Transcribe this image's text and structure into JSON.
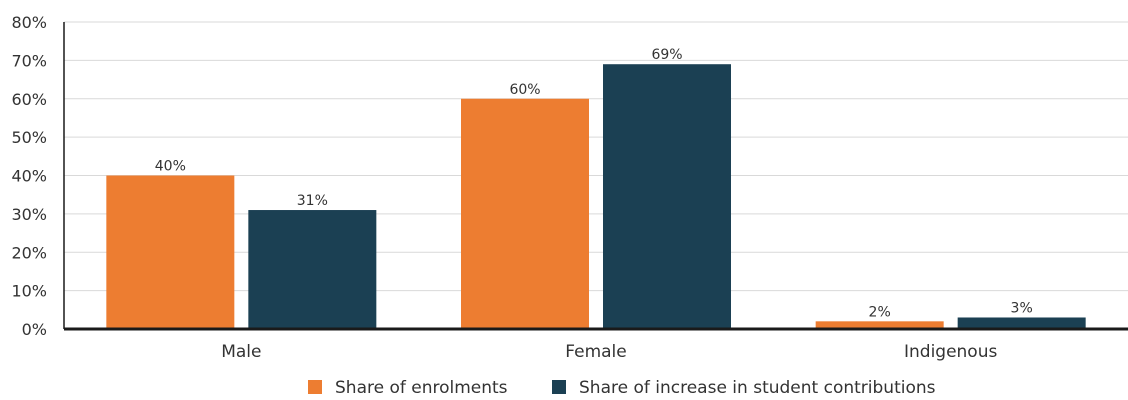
{
  "chart_data": {
    "type": "bar",
    "categories": [
      "Male",
      "Female",
      "Indigenous"
    ],
    "series": [
      {
        "name": "Share of enrolments",
        "values": [
          40,
          60,
          2
        ],
        "labels": [
          "40%",
          "60%",
          "2%"
        ]
      },
      {
        "name": "Share of increase in student contributions",
        "values": [
          31,
          69,
          3
        ],
        "labels": [
          "31%",
          "69%",
          "3%"
        ]
      }
    ],
    "ylim": [
      0,
      80
    ],
    "yticks": [
      0,
      10,
      20,
      30,
      40,
      50,
      60,
      70,
      80
    ],
    "ytick_labels": [
      "0%",
      "10%",
      "20%",
      "30%",
      "40%",
      "50%",
      "60%",
      "70%",
      "80%"
    ],
    "grid": true,
    "legend_position": "bottom",
    "colors": {
      "series": [
        "#ed7d31",
        "#1b4053"
      ],
      "grid": "#d9d9d9",
      "axis": "#1a1a1a",
      "text": "#333333"
    }
  }
}
